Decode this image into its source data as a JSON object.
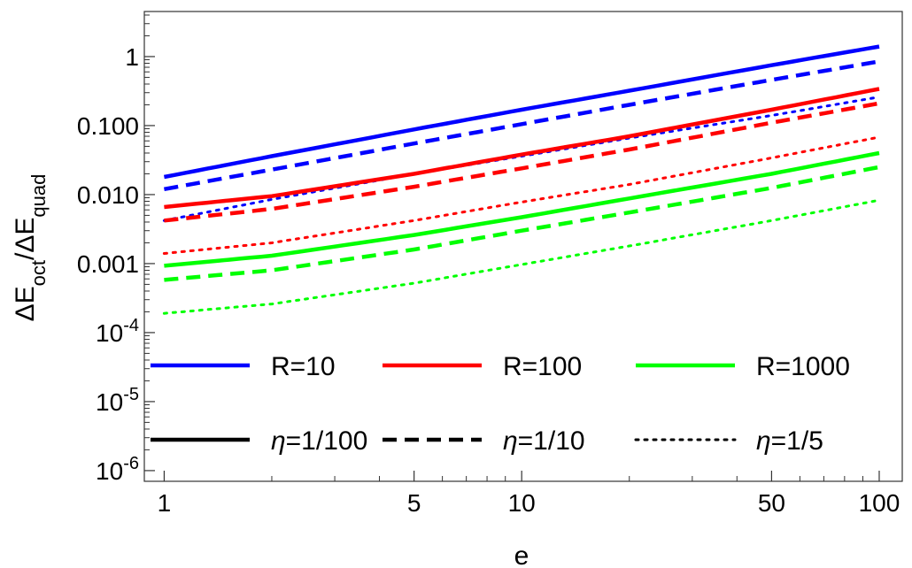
{
  "chart_data": {
    "type": "line",
    "xlabel": "e",
    "ylabel": "ΔE_oct/ΔE_quad",
    "xscale": "log",
    "yscale": "log",
    "xlim": [
      0.88,
      116
    ],
    "ylim": [
      7e-07,
      4.5
    ],
    "grid": false,
    "x_ticks": [
      {
        "value": 1,
        "label": "1"
      },
      {
        "value": 5,
        "label": "5"
      },
      {
        "value": 10,
        "label": "10"
      },
      {
        "value": 50,
        "label": "50"
      },
      {
        "value": 100,
        "label": "100"
      }
    ],
    "y_ticks": [
      {
        "value": 1,
        "base": "1"
      },
      {
        "value": 0.1,
        "base": "0.100"
      },
      {
        "value": 0.01,
        "base": "0.010"
      },
      {
        "value": 0.001,
        "base": "0.001"
      },
      {
        "value": 0.0001,
        "base": "10",
        "exp": "-4"
      },
      {
        "value": 1e-05,
        "base": "10",
        "exp": "-5"
      },
      {
        "value": 1e-06,
        "base": "10",
        "exp": "-6"
      }
    ],
    "legend": {
      "placement": "bottom",
      "colors": [
        {
          "label": "R=10",
          "color": "#0000ff"
        },
        {
          "label": "R=100",
          "color": "#ff0000"
        },
        {
          "label": "R=1000",
          "color": "#00ff00"
        }
      ],
      "styles": [
        {
          "symbol": "η",
          "label": "=1/100",
          "dash": "solid"
        },
        {
          "symbol": "η",
          "label": "=1/10",
          "dash": "dashed"
        },
        {
          "symbol": "η",
          "label": "=1/5",
          "dash": "dotted"
        }
      ]
    },
    "series": [
      {
        "R": "R=10",
        "eta": "η=1/100",
        "color": "#0000ff",
        "dash": "solid",
        "x": [
          1,
          2,
          5,
          10,
          20,
          50,
          100
        ],
        "y": [
          0.018,
          0.036,
          0.088,
          0.17,
          0.32,
          0.75,
          1.4
        ]
      },
      {
        "R": "R=10",
        "eta": "η=1/10",
        "color": "#0000ff",
        "dash": "dashed",
        "x": [
          1,
          2,
          5,
          10,
          20,
          50,
          100
        ],
        "y": [
          0.012,
          0.023,
          0.055,
          0.105,
          0.2,
          0.46,
          0.85
        ]
      },
      {
        "R": "R=10",
        "eta": "η=1/5",
        "color": "#0000ff",
        "dash": "dotted",
        "x": [
          1,
          2,
          5,
          10,
          20,
          50,
          100
        ],
        "y": [
          0.0042,
          0.0085,
          0.02,
          0.036,
          0.066,
          0.14,
          0.26
        ]
      },
      {
        "R": "R=100",
        "eta": "η=1/100",
        "color": "#ff0000",
        "dash": "solid",
        "x": [
          1,
          2,
          5,
          10,
          20,
          50,
          100
        ],
        "y": [
          0.0066,
          0.0095,
          0.02,
          0.038,
          0.07,
          0.17,
          0.34
        ]
      },
      {
        "R": "R=100",
        "eta": "η=1/10",
        "color": "#ff0000",
        "dash": "dashed",
        "x": [
          1,
          2,
          5,
          10,
          20,
          50,
          100
        ],
        "y": [
          0.0042,
          0.0062,
          0.013,
          0.024,
          0.045,
          0.11,
          0.21
        ]
      },
      {
        "R": "R=100",
        "eta": "η=1/5",
        "color": "#ff0000",
        "dash": "dotted",
        "x": [
          1,
          2,
          5,
          10,
          20,
          50,
          100
        ],
        "y": [
          0.0014,
          0.002,
          0.0042,
          0.0078,
          0.014,
          0.034,
          0.068
        ]
      },
      {
        "R": "R=1000",
        "eta": "η=1/100",
        "color": "#00ff00",
        "dash": "solid",
        "x": [
          1,
          2,
          5,
          10,
          20,
          50,
          100
        ],
        "y": [
          0.00093,
          0.0013,
          0.0026,
          0.0047,
          0.0088,
          0.02,
          0.04
        ]
      },
      {
        "R": "R=1000",
        "eta": "η=1/10",
        "color": "#00ff00",
        "dash": "dashed",
        "x": [
          1,
          2,
          5,
          10,
          20,
          50,
          100
        ],
        "y": [
          0.00058,
          0.0008,
          0.0016,
          0.003,
          0.0055,
          0.0125,
          0.025
        ]
      },
      {
        "R": "R=1000",
        "eta": "η=1/5",
        "color": "#00ff00",
        "dash": "dotted",
        "x": [
          1,
          2,
          5,
          10,
          20,
          50,
          100
        ],
        "y": [
          0.00019,
          0.00026,
          0.00052,
          0.00097,
          0.0018,
          0.0042,
          0.0083
        ]
      }
    ]
  }
}
